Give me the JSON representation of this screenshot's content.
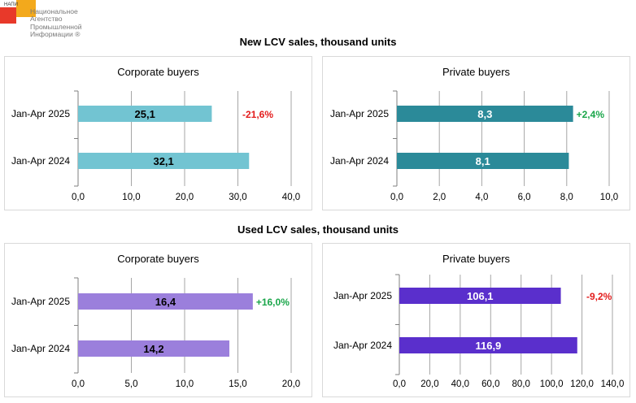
{
  "logo": {
    "abbr": "НАПИ",
    "lines": [
      "Национальное",
      "Агентство",
      "Промышленной",
      "Информации ®"
    ]
  },
  "sections": [
    {
      "title": "New LCV sales, thousand units"
    },
    {
      "title": "Used LCV sales, thousand units"
    }
  ],
  "chart_data": [
    {
      "type": "bar",
      "orientation": "horizontal",
      "title": "Corporate buyers",
      "categories": [
        "Jan-Apr 2025",
        "Jan-Apr 2024"
      ],
      "values": [
        25.1,
        32.1
      ],
      "value_labels": [
        "25,1",
        "32,1"
      ],
      "xlim": [
        0,
        40
      ],
      "ticks": [
        "0,0",
        "10,0",
        "20,0",
        "30,0",
        "40,0"
      ],
      "tick_values": [
        0,
        10,
        20,
        30,
        40
      ],
      "bar_color": "#72c4d2",
      "label_color": "#000000",
      "change": "-21,6%",
      "change_color": "#e31c1c",
      "change_position": "right-of-axis",
      "grid": true
    },
    {
      "type": "bar",
      "orientation": "horizontal",
      "title": "Private buyers",
      "categories": [
        "Jan-Apr 2025",
        "Jan-Apr 2024"
      ],
      "values": [
        8.3,
        8.1
      ],
      "value_labels": [
        "8,3",
        "8,1"
      ],
      "xlim": [
        0,
        10
      ],
      "ticks": [
        "0,0",
        "2,0",
        "4,0",
        "6,0",
        "8,0",
        "10,0"
      ],
      "tick_values": [
        0,
        2,
        4,
        6,
        8,
        10
      ],
      "bar_color": "#2b8a99",
      "label_color": "#ffffff",
      "change": "+2,4%",
      "change_color": "#1aa64a",
      "change_position": "after-bar",
      "grid": true
    },
    {
      "type": "bar",
      "orientation": "horizontal",
      "title": "Corporate buyers",
      "categories": [
        "Jan-Apr 2025",
        "Jan-Apr 2024"
      ],
      "values": [
        16.4,
        14.2
      ],
      "value_labels": [
        "16,4",
        "14,2"
      ],
      "xlim": [
        0,
        20
      ],
      "ticks": [
        "0,0",
        "5,0",
        "10,0",
        "15,0",
        "20,0"
      ],
      "tick_values": [
        0,
        5,
        10,
        15,
        20
      ],
      "bar_color": "#9b7fdc",
      "label_color": "#000000",
      "change": "+16,0%",
      "change_color": "#1aa64a",
      "change_position": "after-bar",
      "grid": true
    },
    {
      "type": "bar",
      "orientation": "horizontal",
      "title": "Private buyers",
      "categories": [
        "Jan-Apr 2025",
        "Jan-Apr 2024"
      ],
      "values": [
        106.1,
        116.9
      ],
      "value_labels": [
        "106,1",
        "116,9"
      ],
      "xlim": [
        0,
        140
      ],
      "ticks": [
        "0,0",
        "20,0",
        "40,0",
        "60,0",
        "80,0",
        "100,0",
        "120,0",
        "140,0"
      ],
      "tick_values": [
        0,
        20,
        40,
        60,
        80,
        100,
        120,
        140
      ],
      "bar_color": "#5a2fcc",
      "label_color": "#ffffff",
      "change": "-9,2%",
      "change_color": "#e31c1c",
      "change_position": "right-of-axis",
      "grid": true
    }
  ]
}
